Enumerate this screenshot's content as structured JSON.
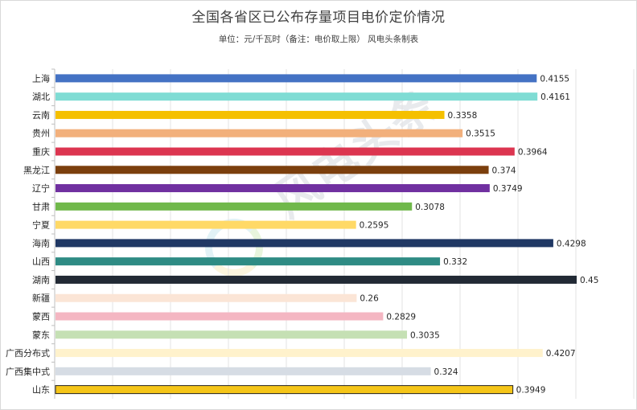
{
  "title": "全国各省区已公布存量项目电价定价情况",
  "subtitle": "单位：元/千瓦时（备注：电价取上限） 风电头条制表",
  "watermark": {
    "text": "风电头条"
  },
  "chart_data": {
    "type": "bar",
    "orientation": "horizontal",
    "title": "全国各省区已公布存量项目电价定价情况",
    "subtitle": "单位：元/千瓦时（备注：电价取上限） 风电头条制表",
    "xlim": [
      0,
      0.5
    ],
    "grid": true,
    "categories": [
      "上海",
      "湖北",
      "云南",
      "贵州",
      "重庆",
      "黑龙江",
      "辽宁",
      "甘肃",
      "宁夏",
      "海南",
      "山西",
      "湖南",
      "新疆",
      "蒙西",
      "蒙东",
      "广西分布式",
      "广西集中式",
      "山东"
    ],
    "values": [
      0.4155,
      0.4161,
      0.3358,
      0.3515,
      0.3964,
      0.374,
      0.3749,
      0.3078,
      0.2595,
      0.4298,
      0.332,
      0.45,
      0.26,
      0.2829,
      0.3035,
      0.4207,
      0.324,
      0.3949
    ],
    "value_labels": [
      "0.4155",
      "0.4161",
      "0.3358",
      "0.3515",
      "0.3964",
      "0.374",
      "0.3749",
      "0.3078",
      "0.2595",
      "0.4298",
      "0.332",
      "0.45",
      "0.26",
      "0.2829",
      "0.3035",
      "0.4207",
      "0.324",
      "0.3949"
    ],
    "colors": [
      "#4472c4",
      "#7fdcd4",
      "#f5c000",
      "#f2b07c",
      "#dc3550",
      "#7b3f0d",
      "#7030a0",
      "#70b84b",
      "#ffd966",
      "#203864",
      "#2e8b84",
      "#222a35",
      "#fbe5d6",
      "#f4b6c2",
      "#c5e0b4",
      "#fff2cc",
      "#d6dce4",
      "#f5c518"
    ]
  }
}
